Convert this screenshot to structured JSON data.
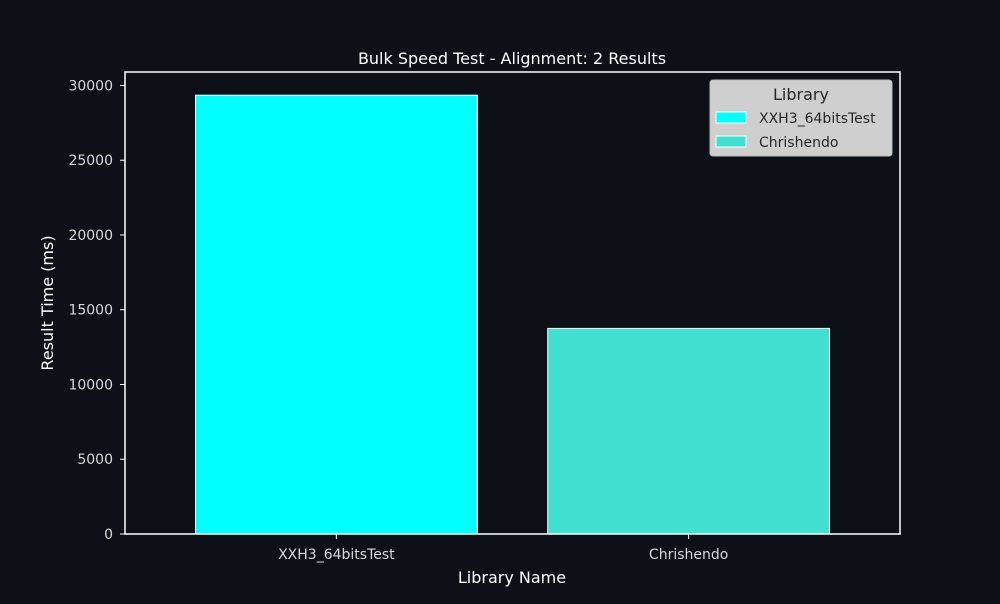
{
  "chart_data": {
    "type": "bar",
    "title": "Bulk Speed Test - Alignment: 2 Results",
    "xlabel": "Library Name",
    "ylabel": "Result Time (ms)",
    "categories": [
      "XXH3_64bitsTest",
      "Chrishendo"
    ],
    "values": [
      29350,
      13750
    ],
    "ylim": [
      0,
      30900
    ],
    "yticks": [
      0,
      5000,
      10000,
      15000,
      20000,
      25000,
      30000
    ],
    "grid": false,
    "legend": {
      "title": "Library",
      "placement": "top-right",
      "entries": [
        {
          "label": "XXH3_64bitsTest",
          "color": "#00ffff"
        },
        {
          "label": "Chrishendo",
          "color": "#40e0d0"
        }
      ]
    },
    "colors": [
      "#00ffff",
      "#40e0d0"
    ]
  },
  "theme": {
    "background": "#0e1018",
    "axis_color": "#ffffff",
    "text_color": "#ffffff",
    "tick_text_color": "#d8d8d8",
    "bar_edge_color": "#ffffff",
    "legend_background": "#cfcfcf",
    "legend_text_color": "#262626"
  }
}
